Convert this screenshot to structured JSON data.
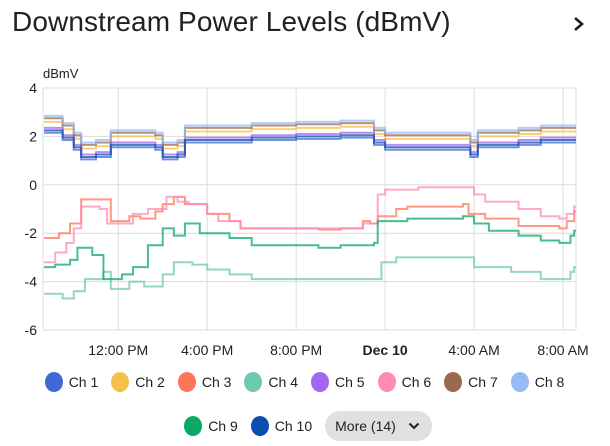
{
  "header": {
    "title": "Downstream Power Levels (dBmV)",
    "chevron_icon": "chevron-right-icon"
  },
  "legend": {
    "more_label": "More (14)",
    "more_icon": "chevron-down-icon"
  },
  "chart_data": {
    "type": "line",
    "step": true,
    "ylabel": "dBmV",
    "ylim": [
      -6,
      4
    ],
    "yticks": [
      "4",
      "2",
      "0",
      "-2",
      "-4",
      "-6"
    ],
    "xlim": [
      "12-09 08:37",
      "12-10 08:35"
    ],
    "xticks": [
      {
        "label": "12:00 PM",
        "at": "12-09 12:00",
        "bold": false
      },
      {
        "label": "4:00 PM",
        "at": "12-09 16:00",
        "bold": false
      },
      {
        "label": "8:00 PM",
        "at": "12-09 20:00",
        "bold": false
      },
      {
        "label": "Dec 10",
        "at": "12-10 00:00",
        "bold": true
      },
      {
        "label": "4:00 AM",
        "at": "12-10 04:00",
        "bold": false
      },
      {
        "label": "8:00 AM",
        "at": "12-10 08:00",
        "bold": false
      }
    ],
    "grid": true,
    "legend_position": "bottom",
    "series": [
      {
        "name": "Ch 1",
        "color": "#4169d6",
        "x": [
          "12-09 08:40",
          "12-09 09:30",
          "12-09 10:00",
          "12-09 10:20",
          "12-09 11:00",
          "12-09 11:40",
          "12-09 13:40",
          "12-09 14:00",
          "12-09 14:40",
          "12-09 15:00",
          "12-09 16:00",
          "12-09 18:00",
          "12-09 20:00",
          "12-09 22:00",
          "12-09 23:30",
          "12-10 00:00",
          "12-10 03:40",
          "12-10 03:50",
          "12-10 04:10",
          "12-10 06:00",
          "12-10 07:00",
          "12-10 08:35"
        ],
        "y": [
          2.15,
          1.85,
          1.45,
          1.05,
          1.15,
          1.55,
          1.45,
          1.05,
          1.15,
          1.75,
          1.75,
          1.85,
          1.9,
          1.95,
          1.65,
          1.45,
          1.45,
          1.15,
          1.55,
          1.65,
          1.75,
          1.75
        ]
      },
      {
        "name": "Ch 2",
        "color": "#f5c04a",
        "x": [
          "12-09 08:40",
          "12-09 09:30",
          "12-09 10:00",
          "12-09 10:20",
          "12-09 11:00",
          "12-09 11:40",
          "12-09 13:40",
          "12-09 14:00",
          "12-09 14:40",
          "12-09 15:00",
          "12-09 16:00",
          "12-09 18:00",
          "12-09 20:00",
          "12-09 22:00",
          "12-09 23:30",
          "12-10 00:00",
          "12-10 03:40",
          "12-10 03:50",
          "12-10 04:10",
          "12-10 06:00",
          "12-10 07:00",
          "12-10 08:35"
        ],
        "y": [
          2.6,
          2.3,
          1.9,
          1.5,
          1.6,
          2.0,
          1.9,
          1.5,
          1.6,
          2.2,
          2.2,
          2.3,
          2.35,
          2.4,
          2.1,
          1.9,
          1.9,
          1.6,
          2.0,
          2.1,
          2.2,
          2.2
        ]
      },
      {
        "name": "Ch 3",
        "color": "#ff7559",
        "x": [
          "12-09 08:40",
          "12-09 09:20",
          "12-09 09:50",
          "12-09 10:20",
          "12-09 11:30",
          "12-09 11:40",
          "12-09 12:30",
          "12-09 13:00",
          "12-09 13:40",
          "12-09 14:00",
          "12-09 14:30",
          "12-09 15:00",
          "12-09 16:00",
          "12-09 17:00",
          "12-09 17:30",
          "12-09 20:00",
          "12-09 21:00",
          "12-09 22:00",
          "12-09 23:00",
          "12-09 23:20",
          "12-09 23:40",
          "12-10 00:30",
          "12-10 01:00",
          "12-10 03:30",
          "12-10 03:45",
          "12-10 04:30",
          "12-10 06:00",
          "12-10 07:50",
          "12-10 08:10",
          "12-10 08:30"
        ],
        "y": [
          -2.2,
          -2.0,
          -1.6,
          -0.6,
          -0.6,
          -1.5,
          -1.3,
          -1.4,
          -1.1,
          -0.8,
          -0.5,
          -0.8,
          -1.2,
          -1.5,
          -1.8,
          -1.8,
          -1.85,
          -1.8,
          -1.5,
          -1.6,
          -1.3,
          -1.0,
          -0.9,
          -0.8,
          -1.2,
          -1.4,
          -1.7,
          -1.8,
          -1.5,
          -1.1
        ]
      },
      {
        "name": "Ch 4",
        "color": "#6dc8b1",
        "x": [
          "12-09 08:40",
          "12-09 09:30",
          "12-09 10:00",
          "12-09 10:30",
          "12-09 11:20",
          "12-09 11:40",
          "12-09 12:30",
          "12-09 13:10",
          "12-09 14:00",
          "12-09 14:30",
          "12-09 15:20",
          "12-09 16:00",
          "12-09 17:00",
          "12-09 18:00",
          "12-09 21:00",
          "12-09 23:40",
          "12-09 23:50",
          "12-10 00:30",
          "12-10 03:30",
          "12-10 04:00",
          "12-10 05:40",
          "12-10 07:00",
          "12-10 08:20",
          "12-10 08:30"
        ],
        "y": [
          -4.5,
          -4.7,
          -4.4,
          -3.9,
          -3.6,
          -4.3,
          -4.0,
          -4.2,
          -3.7,
          -3.2,
          -3.3,
          -3.5,
          -3.7,
          -3.9,
          -3.9,
          -3.9,
          -3.2,
          -3.0,
          -3.0,
          -3.4,
          -3.6,
          -3.9,
          -3.6,
          -3.4
        ]
      },
      {
        "name": "Ch 5",
        "color": "#a366f0",
        "x": [
          "12-09 08:40",
          "12-09 09:30",
          "12-09 10:00",
          "12-09 10:20",
          "12-09 11:00",
          "12-09 11:40",
          "12-09 13:40",
          "12-09 14:00",
          "12-09 14:40",
          "12-09 15:00",
          "12-09 16:00",
          "12-09 18:00",
          "12-09 20:00",
          "12-09 22:00",
          "12-09 23:30",
          "12-10 00:00",
          "12-10 03:40",
          "12-10 03:50",
          "12-10 04:10",
          "12-10 06:00",
          "12-10 07:00",
          "12-10 08:35"
        ],
        "y": [
          2.35,
          2.05,
          1.65,
          1.25,
          1.35,
          1.75,
          1.65,
          1.25,
          1.35,
          1.95,
          1.95,
          2.05,
          2.1,
          2.15,
          1.85,
          1.65,
          1.65,
          1.35,
          1.75,
          1.85,
          1.95,
          1.95
        ]
      },
      {
        "name": "Ch 6",
        "color": "#ff8bb6",
        "x": [
          "12-09 08:40",
          "12-09 09:10",
          "12-09 09:40",
          "12-09 10:00",
          "12-09 10:20",
          "12-09 11:10",
          "12-09 11:30",
          "12-09 12:20",
          "12-09 12:40",
          "12-09 13:20",
          "12-09 14:10",
          "12-09 14:40",
          "12-09 15:10",
          "12-09 16:00",
          "12-09 16:30",
          "12-09 17:30",
          "12-09 20:00",
          "12-09 23:00",
          "12-09 23:40",
          "12-10 00:00",
          "12-10 01:30",
          "12-10 03:40",
          "12-10 04:00",
          "12-10 04:30",
          "12-10 06:00",
          "12-10 07:00",
          "12-10 07:50",
          "12-10 08:10",
          "12-10 08:30"
        ],
        "y": [
          -3.2,
          -2.8,
          -2.4,
          -1.8,
          -0.9,
          -1.0,
          -1.6,
          -1.6,
          -1.2,
          -1.0,
          -0.5,
          -0.7,
          -0.8,
          -1.2,
          -1.5,
          -1.8,
          -1.8,
          -1.6,
          -0.4,
          -0.2,
          -0.1,
          -0.1,
          -0.4,
          -0.7,
          -1.0,
          -1.3,
          -1.4,
          -1.2,
          -0.9
        ]
      },
      {
        "name": "Ch 7",
        "color": "#9b6a4e",
        "x": [
          "12-09 08:40",
          "12-09 09:30",
          "12-09 10:00",
          "12-09 10:20",
          "12-09 11:00",
          "12-09 11:40",
          "12-09 13:40",
          "12-09 14:00",
          "12-09 14:40",
          "12-09 15:00",
          "12-09 16:00",
          "12-09 18:00",
          "12-09 20:00",
          "12-09 22:00",
          "12-09 23:30",
          "12-10 00:00",
          "12-10 03:40",
          "12-10 03:50",
          "12-10 04:10",
          "12-10 06:00",
          "12-10 07:00",
          "12-10 08:35"
        ],
        "y": [
          2.75,
          2.45,
          2.05,
          1.65,
          1.75,
          2.15,
          2.05,
          1.65,
          1.75,
          2.35,
          2.35,
          2.45,
          2.5,
          2.55,
          2.25,
          2.05,
          2.05,
          1.75,
          2.15,
          2.25,
          2.35,
          2.35
        ]
      },
      {
        "name": "Ch 8",
        "color": "#96baf5",
        "x": [
          "12-09 08:40",
          "12-09 09:30",
          "12-09 10:00",
          "12-09 10:20",
          "12-09 11:00",
          "12-09 11:40",
          "12-09 13:40",
          "12-09 14:00",
          "12-09 14:40",
          "12-09 15:00",
          "12-09 16:00",
          "12-09 18:00",
          "12-09 20:00",
          "12-09 22:00",
          "12-09 23:30",
          "12-10 00:00",
          "12-10 03:40",
          "12-10 03:50",
          "12-10 04:10",
          "12-10 06:00",
          "12-10 07:00",
          "12-10 08:35"
        ],
        "y": [
          2.85,
          2.55,
          2.15,
          1.75,
          1.85,
          2.25,
          2.15,
          1.75,
          1.85,
          2.45,
          2.45,
          2.55,
          2.6,
          2.65,
          2.35,
          2.15,
          2.15,
          1.85,
          2.25,
          2.35,
          2.45,
          2.45
        ]
      },
      {
        "name": "Ch 9",
        "color": "#0ba866",
        "x": [
          "12-09 08:40",
          "12-09 09:10",
          "12-09 09:50",
          "12-09 10:10",
          "12-09 10:50",
          "12-09 11:20",
          "12-09 12:10",
          "12-09 12:40",
          "12-09 13:20",
          "12-09 14:00",
          "12-09 14:30",
          "12-09 15:00",
          "12-09 15:40",
          "12-09 17:00",
          "12-09 18:00",
          "12-09 21:00",
          "12-09 22:00",
          "12-09 23:30",
          "12-09 23:40",
          "12-10 01:00",
          "12-10 03:30",
          "12-10 04:00",
          "12-10 04:40",
          "12-10 06:00",
          "12-10 07:00",
          "12-10 07:50",
          "12-10 08:20",
          "12-10 08:30"
        ],
        "y": [
          -3.4,
          -3.3,
          -3.1,
          -2.6,
          -2.9,
          -3.9,
          -3.7,
          -3.4,
          -2.5,
          -1.8,
          -2.1,
          -1.6,
          -2.0,
          -2.2,
          -2.5,
          -2.6,
          -2.5,
          -2.4,
          -1.5,
          -1.4,
          -1.3,
          -1.6,
          -1.9,
          -2.1,
          -2.3,
          -2.4,
          -2.1,
          -1.9
        ]
      },
      {
        "name": "Ch 10",
        "color": "#0b4dad",
        "x": [
          "12-09 08:40",
          "12-09 09:30",
          "12-09 10:00",
          "12-09 10:20",
          "12-09 11:00",
          "12-09 11:40",
          "12-09 13:40",
          "12-09 14:00",
          "12-09 14:40",
          "12-09 15:00",
          "12-09 16:00",
          "12-09 18:00",
          "12-09 20:00",
          "12-09 22:00",
          "12-09 23:30",
          "12-10 00:00",
          "12-10 03:40",
          "12-10 03:50",
          "12-10 04:10",
          "12-10 06:00",
          "12-10 07:00",
          "12-10 08:35"
        ],
        "y": [
          2.25,
          1.95,
          1.55,
          1.15,
          1.25,
          1.65,
          1.55,
          1.15,
          1.25,
          1.85,
          1.85,
          1.95,
          2.0,
          2.05,
          1.75,
          1.55,
          1.55,
          1.25,
          1.65,
          1.75,
          1.85,
          1.85
        ]
      }
    ]
  }
}
